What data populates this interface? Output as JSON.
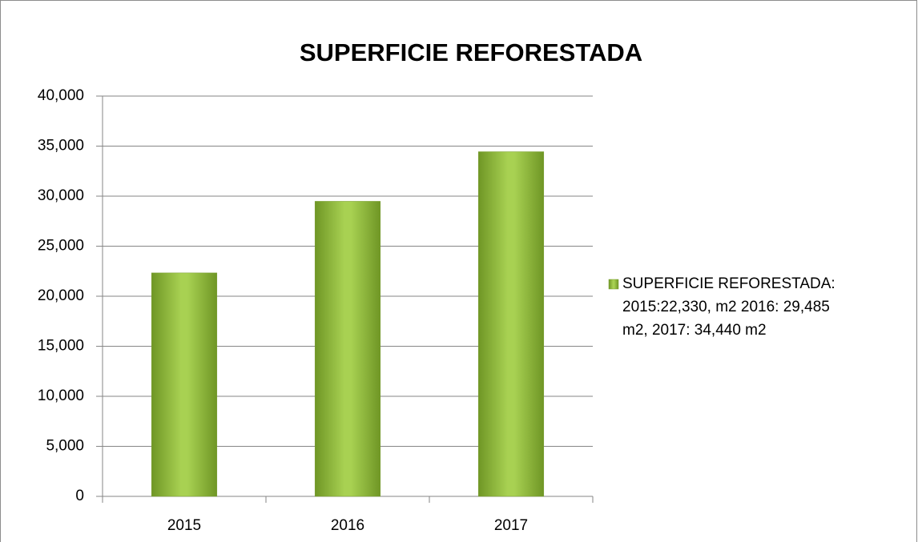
{
  "chart_data": {
    "type": "bar",
    "title": "SUPERFICIE REFORESTADA",
    "categories": [
      "2015",
      "2016",
      "2017"
    ],
    "series": [
      {
        "name": "SUPERFICIE REFORESTADA: 2015:22,330, m2 2016: 29,485 m2, 2017: 34,440 m2",
        "color": "#9bbb59",
        "values": [
          22330,
          29485,
          34440
        ]
      }
    ],
    "ylim": [
      0,
      40000
    ],
    "yticks": [
      0,
      {
        "value": 5000,
        "label": "5,000"
      },
      {
        "value": 10000,
        "label": "10,000"
      },
      {
        "value": 15000,
        "label": "15,000"
      },
      {
        "value": 20000,
        "label": "20,000"
      },
      {
        "value": 25000,
        "label": "25,000"
      },
      {
        "value": 30000,
        "label": "30,000"
      },
      {
        "value": 35000,
        "label": "35,000"
      },
      {
        "value": 40000,
        "label": "40,000"
      }
    ],
    "grid": true,
    "legend": "right"
  }
}
